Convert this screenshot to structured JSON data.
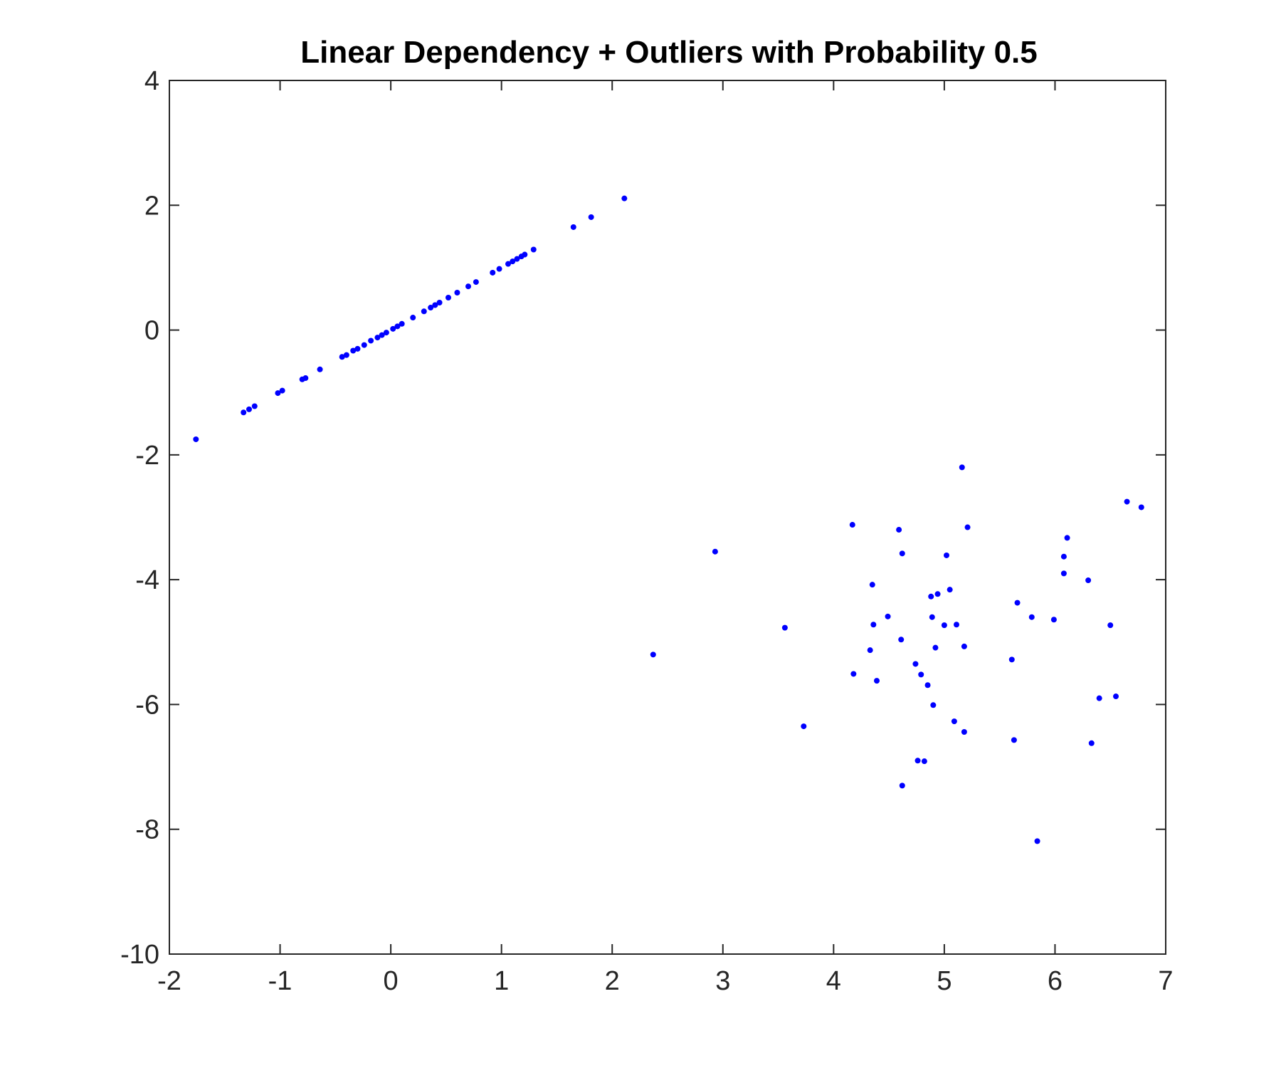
{
  "chart_data": {
    "type": "scatter",
    "title": "Linear Dependency + Outliers with Probability 0.5",
    "xlabel": "",
    "ylabel": "",
    "xlim": [
      -2,
      7
    ],
    "ylim": [
      -10,
      4
    ],
    "xticks": [
      -2,
      -1,
      0,
      1,
      2,
      3,
      4,
      5,
      6,
      7
    ],
    "yticks": [
      -10,
      -8,
      -6,
      -4,
      -2,
      0,
      2,
      4
    ],
    "grid": false,
    "marker_color": "#0000FF",
    "series": [
      {
        "points": [
          [
            -1.76,
            -1.75
          ],
          [
            -1.33,
            -1.32
          ],
          [
            -1.28,
            -1.27
          ],
          [
            -1.23,
            -1.22
          ],
          [
            -1.02,
            -1.01
          ],
          [
            -0.98,
            -0.97
          ],
          [
            -0.8,
            -0.79
          ],
          [
            -0.77,
            -0.77
          ],
          [
            -0.64,
            -0.63
          ],
          [
            -0.44,
            -0.43
          ],
          [
            -0.4,
            -0.4
          ],
          [
            -0.34,
            -0.33
          ],
          [
            -0.3,
            -0.3
          ],
          [
            -0.24,
            -0.24
          ],
          [
            -0.18,
            -0.17
          ],
          [
            -0.12,
            -0.12
          ],
          [
            -0.08,
            -0.08
          ],
          [
            -0.04,
            -0.04
          ],
          [
            0.02,
            0.02
          ],
          [
            0.06,
            0.06
          ],
          [
            0.1,
            0.1
          ],
          [
            0.2,
            0.2
          ],
          [
            0.3,
            0.3
          ],
          [
            0.36,
            0.36
          ],
          [
            0.4,
            0.4
          ],
          [
            0.44,
            0.44
          ],
          [
            0.52,
            0.52
          ],
          [
            0.6,
            0.6
          ],
          [
            0.7,
            0.7
          ],
          [
            0.77,
            0.77
          ],
          [
            0.92,
            0.92
          ],
          [
            0.98,
            0.98
          ],
          [
            1.06,
            1.06
          ],
          [
            1.1,
            1.1
          ],
          [
            1.14,
            1.14
          ],
          [
            1.18,
            1.18
          ],
          [
            1.21,
            1.21
          ],
          [
            1.29,
            1.29
          ],
          [
            1.65,
            1.65
          ],
          [
            1.81,
            1.81
          ],
          [
            2.11,
            2.11
          ],
          [
            2.37,
            -5.2
          ],
          [
            2.93,
            -3.55
          ],
          [
            3.56,
            -4.77
          ],
          [
            3.73,
            -6.35
          ],
          [
            4.17,
            -3.12
          ],
          [
            4.18,
            -5.51
          ],
          [
            4.33,
            -5.13
          ],
          [
            4.35,
            -4.08
          ],
          [
            4.36,
            -4.72
          ],
          [
            4.39,
            -5.62
          ],
          [
            4.49,
            -4.59
          ],
          [
            4.59,
            -3.2
          ],
          [
            4.61,
            -4.96
          ],
          [
            4.62,
            -3.58
          ],
          [
            4.62,
            -7.3
          ],
          [
            4.74,
            -5.35
          ],
          [
            4.76,
            -6.9
          ],
          [
            4.79,
            -5.52
          ],
          [
            4.82,
            -6.91
          ],
          [
            4.85,
            -5.69
          ],
          [
            4.88,
            -4.27
          ],
          [
            4.89,
            -4.6
          ],
          [
            4.9,
            -6.01
          ],
          [
            4.92,
            -5.09
          ],
          [
            4.94,
            -4.23
          ],
          [
            5.0,
            -4.73
          ],
          [
            5.02,
            -3.61
          ],
          [
            5.05,
            -4.16
          ],
          [
            5.09,
            -6.27
          ],
          [
            5.11,
            -4.72
          ],
          [
            5.16,
            -2.2
          ],
          [
            5.18,
            -6.44
          ],
          [
            5.18,
            -5.07
          ],
          [
            5.21,
            -3.16
          ],
          [
            5.61,
            -5.28
          ],
          [
            5.63,
            -6.57
          ],
          [
            5.66,
            -4.37
          ],
          [
            5.79,
            -4.6
          ],
          [
            5.84,
            -8.19
          ],
          [
            5.99,
            -4.64
          ],
          [
            6.08,
            -3.9
          ],
          [
            6.08,
            -3.63
          ],
          [
            6.11,
            -3.33
          ],
          [
            6.3,
            -4.01
          ],
          [
            6.33,
            -6.62
          ],
          [
            6.4,
            -5.9
          ],
          [
            6.5,
            -4.73
          ],
          [
            6.55,
            -5.87
          ],
          [
            6.65,
            -2.75
          ],
          [
            6.78,
            -2.84
          ]
        ]
      }
    ]
  }
}
